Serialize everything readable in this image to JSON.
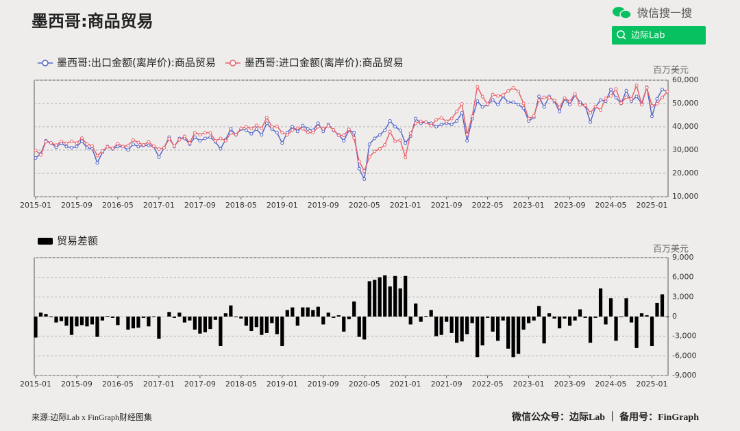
{
  "header": {
    "title": "墨西哥:商品贸易",
    "search_label": "微信搜一搜",
    "search_box": "边际Lab"
  },
  "chart_data": [
    {
      "type": "line",
      "unit": "百万美元",
      "grid": true,
      "categories": [
        "2015-01",
        null,
        null,
        null,
        null,
        null,
        null,
        null,
        "2015-09",
        null,
        null,
        null,
        null,
        null,
        null,
        null,
        "2016-05",
        null,
        null,
        null,
        null,
        null,
        null,
        null,
        "2017-01",
        null,
        null,
        null,
        null,
        null,
        null,
        null,
        "2017-09",
        null,
        null,
        null,
        null,
        null,
        null,
        null,
        "2018-05",
        null,
        null,
        null,
        null,
        null,
        null,
        null,
        "2019-01",
        null,
        null,
        null,
        null,
        null,
        null,
        null,
        "2019-09",
        null,
        null,
        null,
        null,
        null,
        null,
        null,
        "2020-05",
        null,
        null,
        null,
        null,
        null,
        null,
        null,
        "2021-01",
        null,
        null,
        null,
        null,
        null,
        null,
        null,
        "2021-09",
        null,
        null,
        null,
        null,
        null,
        null,
        null,
        "2022-05",
        null,
        null,
        null,
        null,
        null,
        null,
        null,
        "2023-01",
        null,
        null,
        null,
        null,
        null,
        null,
        null,
        "2023-09",
        null,
        null,
        null,
        null,
        null,
        null,
        null,
        "2024-05",
        null,
        null,
        null,
        null,
        null,
        null,
        null,
        "2025-01",
        null,
        null,
        null
      ],
      "series": [
        {
          "name": "墨西哥:出口金额(离岸价):商品贸易",
          "color": "#5466c8",
          "values": [
            26600,
            28500,
            34000,
            33000,
            31200,
            33000,
            31500,
            31000,
            31500,
            33800,
            31000,
            30600,
            24500,
            29000,
            31500,
            30500,
            31500,
            31500,
            30000,
            32500,
            31500,
            32000,
            32000,
            31500,
            27000,
            31000,
            35500,
            31500,
            35000,
            35000,
            32500,
            35500,
            34000,
            35000,
            35500,
            33500,
            30500,
            34500,
            39000,
            36500,
            39000,
            38500,
            37000,
            39000,
            36500,
            41500,
            39000,
            37500,
            33000,
            37500,
            40000,
            38000,
            40500,
            39000,
            38500,
            41500,
            38000,
            41000,
            38500,
            36500,
            34000,
            38500,
            37500,
            22000,
            17500,
            32500,
            35000,
            36500,
            38500,
            42500,
            40000,
            38500,
            33000,
            36000,
            43500,
            41500,
            42000,
            41500,
            40000,
            41000,
            41500,
            41000,
            42500,
            46000,
            34000,
            43500,
            51000,
            48500,
            49500,
            51500,
            49500,
            53000,
            50500,
            50500,
            49500,
            48000,
            42500,
            44000,
            53000,
            48500,
            53000,
            51000,
            46500,
            52000,
            49500,
            53500,
            50500,
            49000,
            42000,
            48500,
            51500,
            51000,
            56000,
            52500,
            50000,
            55500,
            51000,
            53000,
            50000,
            57000,
            44500,
            52000,
            56000,
            55000
          ]
        },
        {
          "name": "墨西哥:进口金额(离岸价):商品贸易",
          "color": "#e8616b",
          "values": [
            29800,
            27900,
            33600,
            33100,
            32100,
            33700,
            32900,
            33800,
            33000,
            35100,
            32500,
            31800,
            27600,
            29600,
            31400,
            30700,
            32800,
            31500,
            32000,
            34300,
            33200,
            32200,
            33500,
            31600,
            30400,
            31000,
            34800,
            31700,
            34400,
            35900,
            33100,
            37500,
            36600,
            37400,
            37400,
            34000,
            35000,
            34000,
            37300,
            36600,
            39300,
            39900,
            39200,
            40600,
            39300,
            44000,
            40000,
            40200,
            37500,
            36500,
            38600,
            39400,
            39100,
            37600,
            37500,
            40000,
            39200,
            40400,
            38700,
            36300,
            36300,
            38900,
            35200,
            25100,
            21000,
            27100,
            29400,
            30500,
            32200,
            37900,
            33800,
            34200,
            26800,
            37200,
            41500,
            42300,
            41900,
            40500,
            43000,
            43800,
            42300,
            43500,
            46500,
            49800,
            36700,
            44500,
            57200,
            52900,
            49700,
            53800,
            53200,
            53600,
            55400,
            56700,
            55200,
            50000,
            43500,
            44600,
            51400,
            52600,
            52500,
            51300,
            48300,
            52300,
            50900,
            54100,
            49400,
            49200,
            46000,
            48700,
            47200,
            52200,
            53200,
            56200,
            50100,
            52700,
            51900,
            57800,
            49500,
            56800,
            49000,
            49900,
            52600,
            55100
          ]
        }
      ],
      "ylim": [
        10000,
        60000
      ],
      "yticks": [
        {
          "value": 10000,
          "label": "10,000"
        },
        {
          "value": 20000,
          "label": "20,000"
        },
        {
          "value": 30000,
          "label": "30,000"
        },
        {
          "value": 40000,
          "label": "40,000"
        },
        {
          "value": 50000,
          "label": "50,000"
        },
        {
          "value": 60000,
          "label": "60,000"
        }
      ]
    },
    {
      "type": "bar",
      "unit": "百万美元",
      "grid": true,
      "categories": [
        "2015-01",
        null,
        null,
        null,
        null,
        null,
        null,
        null,
        "2015-09",
        null,
        null,
        null,
        null,
        null,
        null,
        null,
        "2016-05",
        null,
        null,
        null,
        null,
        null,
        null,
        null,
        "2017-01",
        null,
        null,
        null,
        null,
        null,
        null,
        null,
        "2017-09",
        null,
        null,
        null,
        null,
        null,
        null,
        null,
        "2018-05",
        null,
        null,
        null,
        null,
        null,
        null,
        null,
        "2019-01",
        null,
        null,
        null,
        null,
        null,
        null,
        null,
        "2019-09",
        null,
        null,
        null,
        null,
        null,
        null,
        null,
        "2020-05",
        null,
        null,
        null,
        null,
        null,
        null,
        null,
        "2021-01",
        null,
        null,
        null,
        null,
        null,
        null,
        null,
        "2021-09",
        null,
        null,
        null,
        null,
        null,
        null,
        null,
        "2022-05",
        null,
        null,
        null,
        null,
        null,
        null,
        null,
        "2023-01",
        null,
        null,
        null,
        null,
        null,
        null,
        null,
        "2023-09",
        null,
        null,
        null,
        null,
        null,
        null,
        null,
        "2024-05",
        null,
        null,
        null,
        null,
        null,
        null,
        null,
        "2025-01",
        null,
        null,
        null
      ],
      "series": [
        {
          "name": "贸易差额",
          "color": "#000000",
          "values": [
            -3200,
            600,
            400,
            -100,
            -900,
            -700,
            -1400,
            -2800,
            -1500,
            -1300,
            -1500,
            -1200,
            -3100,
            -600,
            100,
            -200,
            -1300,
            0,
            -2000,
            -1800,
            -1700,
            -200,
            -1500,
            -100,
            -3400,
            0,
            700,
            -200,
            600,
            -900,
            -600,
            -2000,
            -2600,
            -2400,
            -1900,
            -500,
            -4500,
            500,
            1700,
            -100,
            -300,
            -1400,
            -2200,
            -1600,
            -2800,
            -2500,
            -1000,
            -2700,
            -4500,
            1000,
            1400,
            -1400,
            1400,
            1400,
            1000,
            1500,
            -1200,
            600,
            -200,
            200,
            -2300,
            -400,
            2300,
            -3100,
            -3500,
            5400,
            5600,
            6000,
            6300,
            4600,
            6200,
            4300,
            6200,
            -1200,
            2000,
            -800,
            100,
            1000,
            -3000,
            -2800,
            -800,
            -2500,
            -4000,
            -3800,
            -2700,
            -1000,
            -6200,
            -4400,
            -200,
            -2300,
            -3700,
            -600,
            -4900,
            -6200,
            -5700,
            -2000,
            -1000,
            -600,
            1600,
            -4100,
            500,
            -300,
            -1800,
            -300,
            -1400,
            -600,
            1100,
            -200,
            -4000,
            -200,
            4300,
            -1200,
            2800,
            -3700,
            -100,
            2800,
            -900,
            -4800,
            500,
            200,
            -4500,
            2100,
            3400,
            -100
          ]
        }
      ],
      "ylim": [
        -9000,
        9000
      ],
      "yticks": [
        {
          "value": -9000,
          "label": "-9,000"
        },
        {
          "value": -6000,
          "label": "-6,000"
        },
        {
          "value": -3000,
          "label": "-3,000"
        },
        0,
        {
          "value": 3000,
          "label": "3,000"
        },
        {
          "value": 6000,
          "label": "6,000"
        },
        {
          "value": 9000,
          "label": "9,000"
        }
      ]
    }
  ],
  "footer": {
    "source": "来源:边际Lab x FinGraph财经图集",
    "account": "微信公众号：边际Lab ｜ 备用号：FinGraph"
  }
}
